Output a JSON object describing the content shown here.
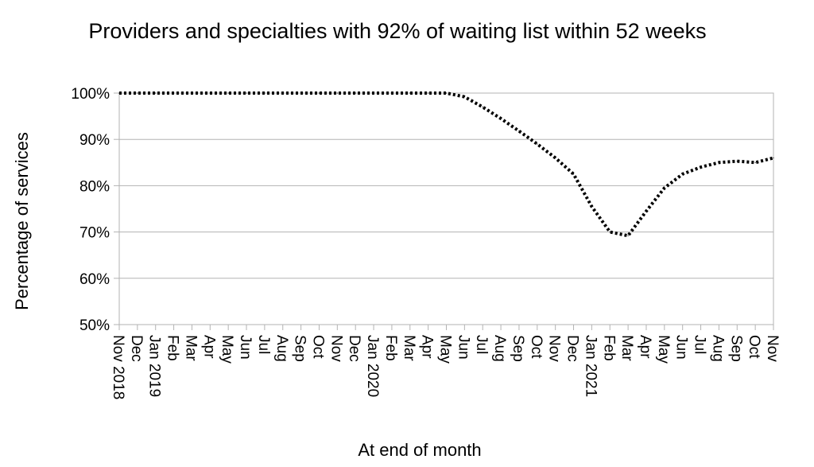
{
  "chart_data": {
    "type": "line",
    "title": "Providers and specialties with 92% of waiting list within 52 weeks",
    "xlabel": "At end of month",
    "ylabel": "Percentage of services",
    "ylim": [
      50,
      100
    ],
    "yticks": [
      "50%",
      "60%",
      "70%",
      "80%",
      "90%",
      "100%"
    ],
    "ytick_values": [
      50,
      60,
      70,
      80,
      90,
      100
    ],
    "grid": "horizontal",
    "line_style": "dotted",
    "line_color": "#000000",
    "categories": [
      "Nov 2018",
      "Dec",
      "Jan 2019",
      "Feb",
      "Mar",
      "Apr",
      "May",
      "Jun",
      "Jul",
      "Aug",
      "Sep",
      "Oct",
      "Nov",
      "Dec",
      "Jan 2020",
      "Feb",
      "Mar",
      "Apr",
      "May",
      "Jun",
      "Jul",
      "Aug",
      "Sep",
      "Oct",
      "Nov",
      "Dec",
      "Jan 2021",
      "Feb",
      "Mar",
      "Apr",
      "May",
      "Jun",
      "Jul",
      "Aug",
      "Sep",
      "Oct",
      "Nov"
    ],
    "series": [
      {
        "values": [
          100,
          100,
          100,
          100,
          100,
          100,
          100,
          100,
          100,
          100,
          100,
          100,
          100,
          100,
          100,
          100,
          100,
          100,
          100,
          99.2,
          97,
          94.5,
          91.8,
          89,
          86,
          82.5,
          75.5,
          70,
          69.2,
          74.5,
          79.5,
          82.5,
          84,
          85,
          85.3,
          85,
          86
        ]
      }
    ]
  }
}
